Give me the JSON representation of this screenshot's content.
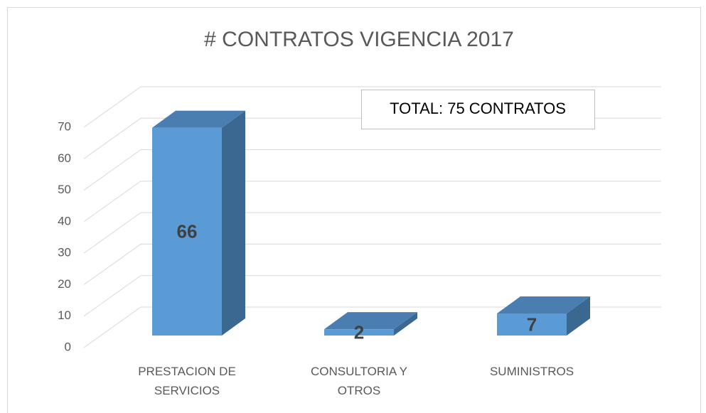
{
  "chart_data": {
    "type": "bar3d",
    "title": "# CONTRATOS VIGENCIA 2017",
    "annotation": "TOTAL: 75 CONTRATOS",
    "categories": [
      "PRESTACION DE SERVICIOS",
      "CONSULTORIA Y OTROS",
      "SUMINISTROS"
    ],
    "values": [
      66,
      2,
      7
    ],
    "color": "#5b9bd5",
    "ylim": [
      0,
      70
    ],
    "yticks": [
      0,
      10,
      20,
      30,
      40,
      50,
      60,
      70
    ],
    "grid": true
  }
}
